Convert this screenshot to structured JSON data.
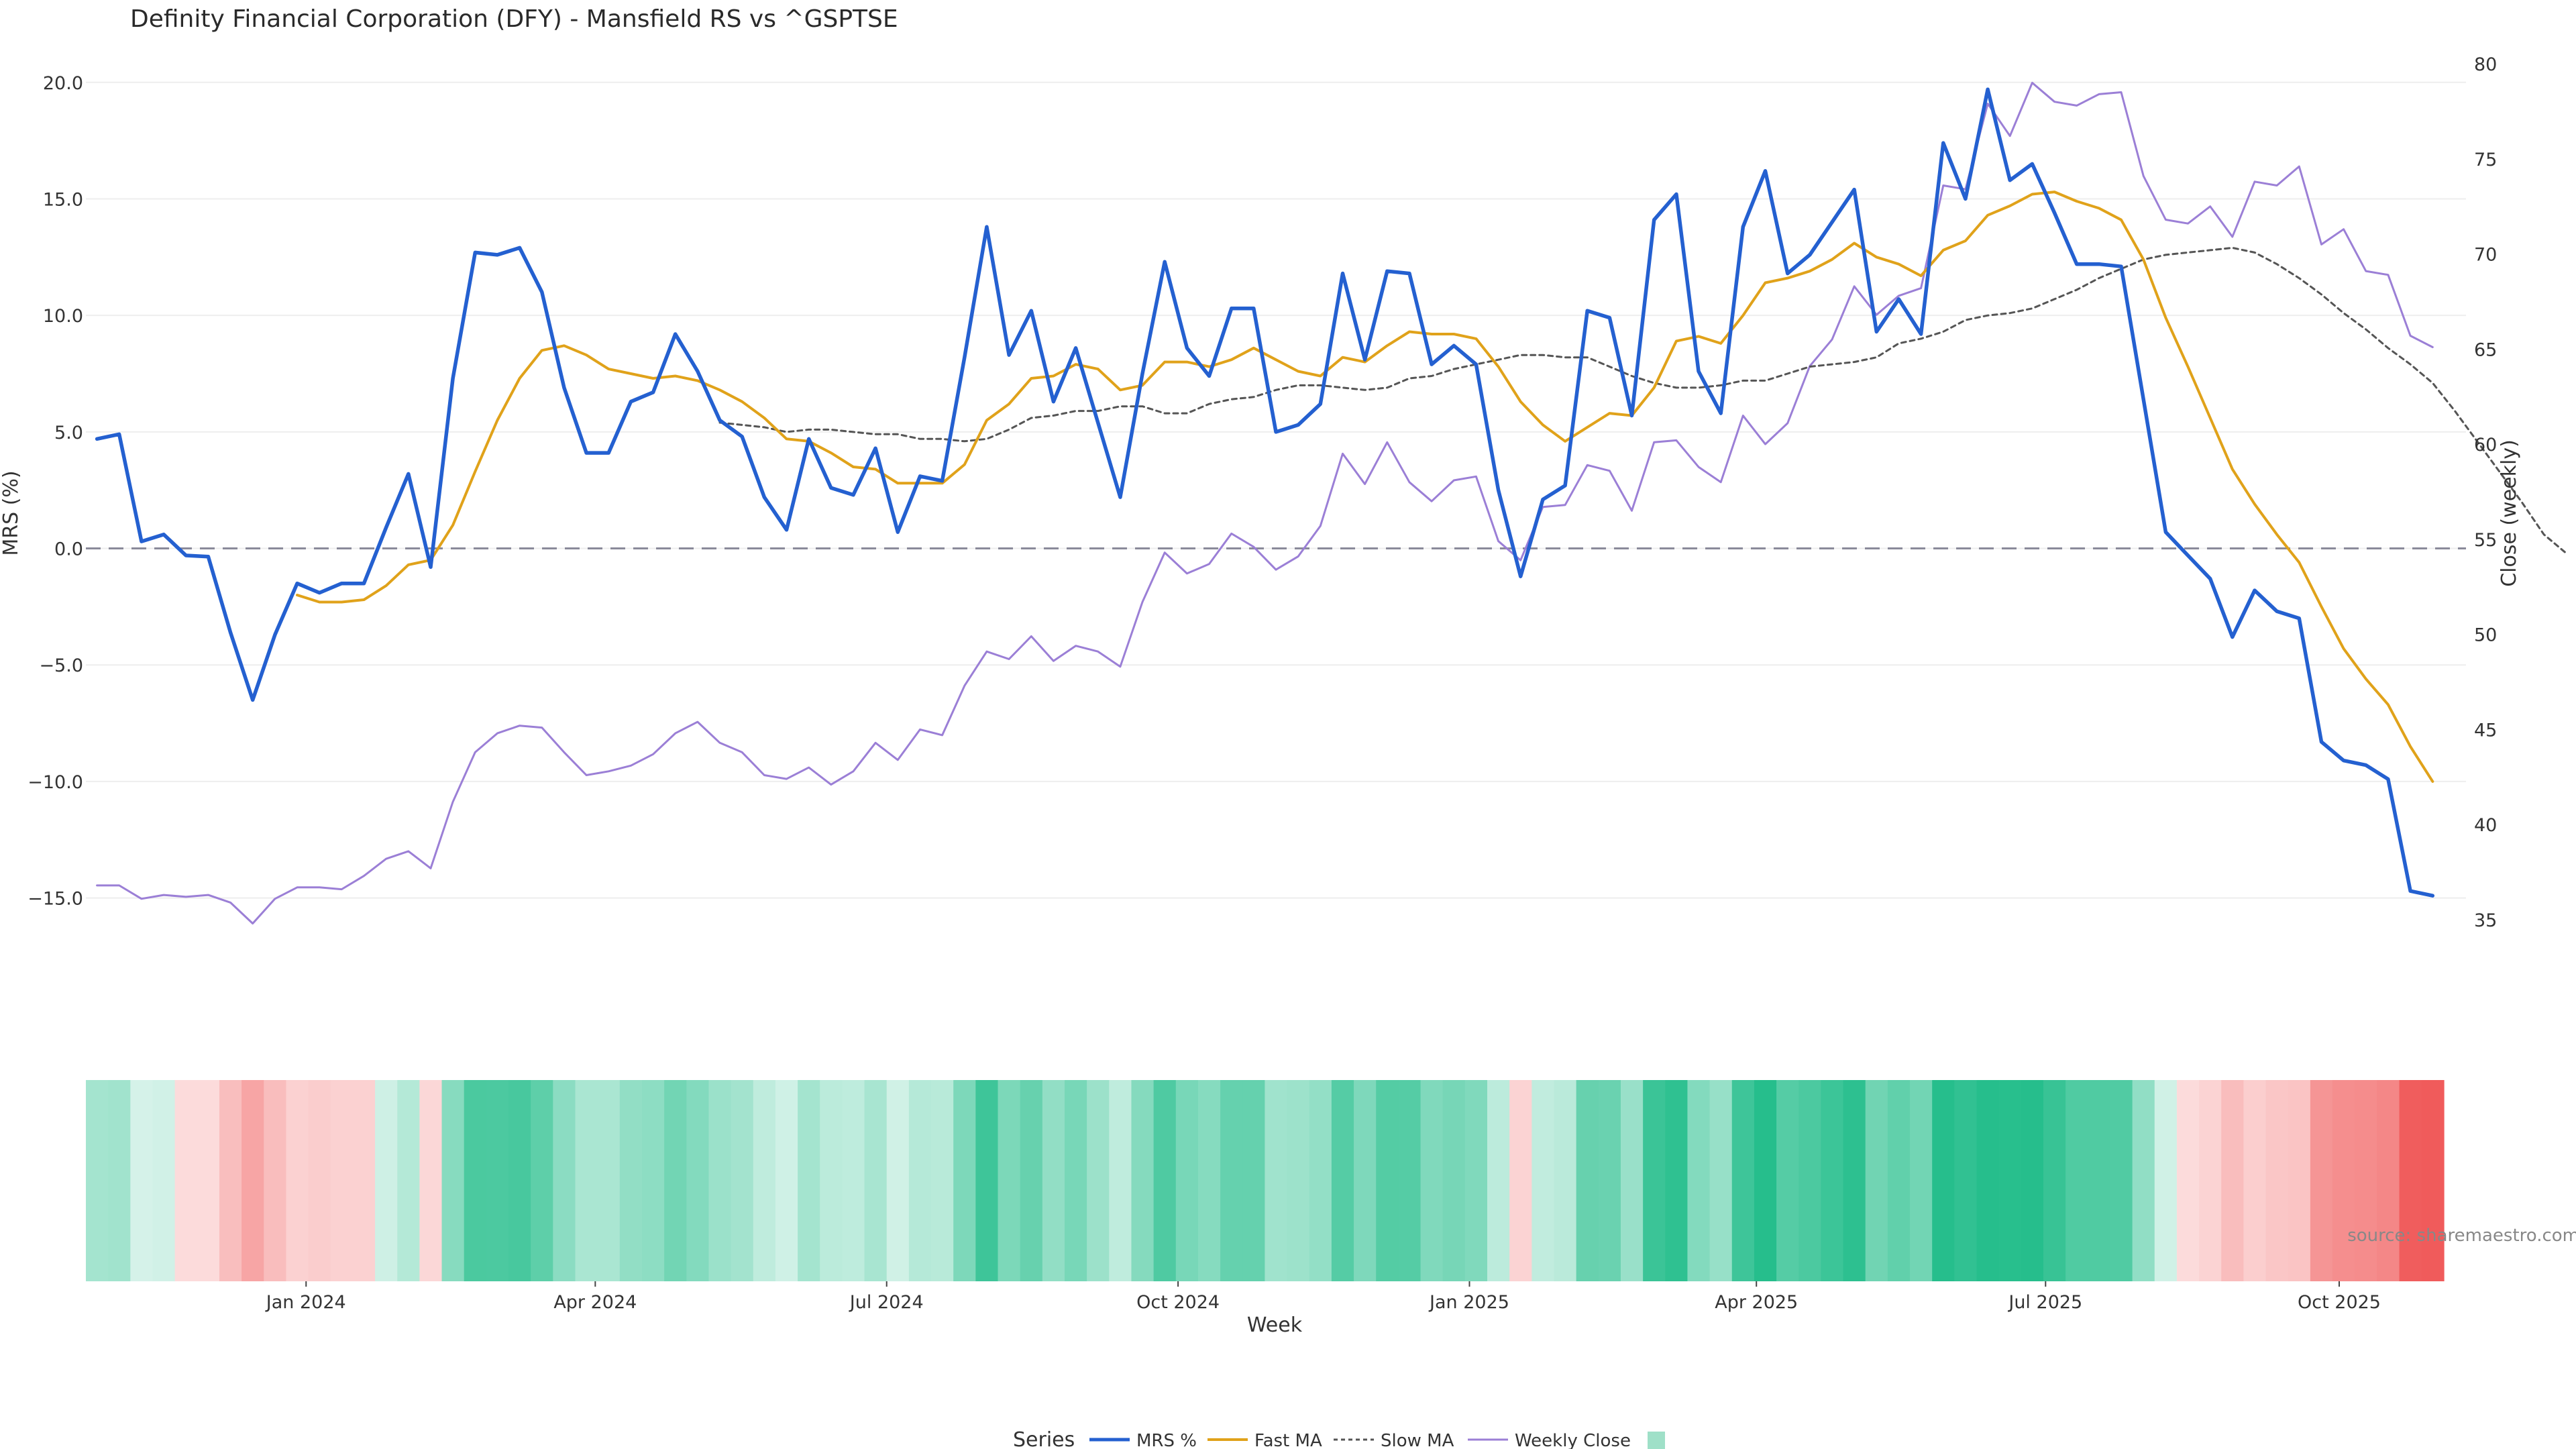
{
  "chart_data": {
    "type": "line",
    "title": "Definity Financial Corporation (DFY) - Mansfield RS vs ^GSPTSE",
    "xlabel": "Week",
    "ylabel_left": "MRS (%)",
    "ylabel_right": "Close (weekly)",
    "y_left_range": [
      -17.4,
      20.8
    ],
    "y_left_ticks": [
      "20.0",
      "15.0",
      "10.0",
      "5.0",
      "0.0",
      "−5.0",
      "−10.0",
      "−15.0"
    ],
    "y_left_tick_values": [
      20,
      15,
      10,
      5,
      0,
      -5,
      -10,
      -15
    ],
    "y_right_range": [
      33.2,
      80.0
    ],
    "y_right_ticks": [
      "80",
      "75",
      "70",
      "65",
      "60",
      "55",
      "50",
      "45",
      "40",
      "35"
    ],
    "y_right_tick_values": [
      80,
      75,
      70,
      65,
      60,
      55,
      50,
      45,
      40,
      35
    ],
    "x_ticks": [
      "Jan 2024",
      "Apr 2024",
      "Jul 2024",
      "Oct 2024",
      "Jan 2025",
      "Apr 2025",
      "Jul 2025",
      "Oct 2025"
    ],
    "x_tick_weeks": [
      9.9,
      22.9,
      36.0,
      49.1,
      62.2,
      75.1,
      88.1,
      101.3
    ],
    "week_count": 107,
    "zero_line": 0,
    "legend_title": "Series",
    "legend_position": "bottom",
    "source": "source: sharemaestro.com",
    "colors": {
      "mrs": "#2460d0",
      "fast_ma": "#e0a21a",
      "slow_ma": "#555555",
      "weekly_close": "#9b7fd6",
      "zero_line": "#8a8a9a",
      "grid": "#eeeeee",
      "heat_positive": "#26be8c",
      "heat_negative": "#f05a5a",
      "legend_heat_swatch": "#9fe0c8"
    },
    "series": [
      {
        "name": "MRS %",
        "key": "mrs",
        "values": [
          4.7,
          4.9,
          0.3,
          0.6,
          -0.3,
          -0.35,
          -3.6,
          -6.5,
          -3.7,
          -1.5,
          -1.9,
          -1.5,
          -1.5,
          0.9,
          3.2,
          -0.8,
          7.3,
          12.7,
          12.6,
          12.9,
          11.0,
          6.9,
          4.1,
          4.1,
          6.3,
          6.7,
          9.2,
          7.6,
          5.5,
          4.8,
          2.2,
          0.8,
          4.7,
          2.6,
          2.3,
          4.3,
          0.7,
          3.1,
          2.9,
          8.2,
          13.8,
          8.3,
          10.2,
          6.3,
          8.6,
          5.4,
          2.2,
          7.5,
          12.3,
          8.6,
          7.4,
          10.3,
          10.3,
          5.0,
          5.3,
          6.2,
          11.8,
          8.1,
          11.9,
          11.8,
          7.9,
          8.7,
          7.9,
          2.5,
          -1.2,
          2.1,
          2.7,
          10.2,
          9.9,
          5.7,
          14.1,
          15.2,
          7.6,
          5.8,
          13.8,
          16.2,
          11.8,
          12.6,
          14.0,
          15.4,
          9.3,
          10.7,
          9.2,
          17.4,
          15.0,
          19.7,
          15.8,
          16.5,
          14.4,
          12.2,
          12.2,
          12.1,
          6.4,
          0.7,
          -0.3,
          -1.3,
          -3.8,
          -1.8,
          -2.7,
          -3.0,
          -8.3,
          -9.1,
          -9.3,
          -9.9,
          -14.7,
          -14.9
        ]
      },
      {
        "name": "Fast MA",
        "key": "fast_ma",
        "start_week": 9,
        "values": [
          -2.0,
          -2.3,
          -2.3,
          -2.2,
          -1.6,
          -0.7,
          -0.5,
          1.0,
          3.3,
          5.5,
          7.3,
          8.5,
          8.7,
          8.3,
          7.7,
          7.5,
          7.3,
          7.4,
          7.2,
          6.8,
          6.3,
          5.6,
          4.7,
          4.6,
          4.1,
          3.5,
          3.4,
          2.8,
          2.8,
          2.8,
          3.6,
          5.5,
          6.2,
          7.3,
          7.4,
          7.9,
          7.7,
          6.8,
          7.0,
          8.0,
          8.0,
          7.8,
          8.1,
          8.6,
          8.1,
          7.6,
          7.4,
          8.2,
          8.0,
          8.7,
          9.3,
          9.2,
          9.2,
          9.0,
          7.8,
          6.3,
          5.3,
          4.6,
          5.2,
          5.8,
          5.7,
          6.9,
          8.9,
          9.1,
          8.8,
          10.0,
          11.4,
          11.6,
          11.9,
          12.4,
          13.1,
          12.5,
          12.2,
          11.7,
          12.8,
          13.2,
          14.3,
          14.7,
          15.2,
          15.3,
          14.9,
          14.6,
          14.1,
          12.4,
          9.9,
          7.8,
          5.6,
          3.4,
          1.9,
          0.6,
          -0.6,
          -2.5,
          -4.3,
          -5.6,
          -6.7,
          -8.5,
          -10.0
        ]
      },
      {
        "name": "Slow MA",
        "key": "slow_ma",
        "start_week": 28,
        "values": [
          5.4,
          5.3,
          5.2,
          5.0,
          5.1,
          5.1,
          5.0,
          4.9,
          4.9,
          4.7,
          4.7,
          4.6,
          4.7,
          5.1,
          5.6,
          5.7,
          5.9,
          5.9,
          6.1,
          6.1,
          5.8,
          5.8,
          6.2,
          6.4,
          6.5,
          6.8,
          7.0,
          7.0,
          6.9,
          6.8,
          6.9,
          7.3,
          7.4,
          7.7,
          7.9,
          8.1,
          8.3,
          8.3,
          8.2,
          8.2,
          7.8,
          7.4,
          7.1,
          6.9,
          6.9,
          7.0,
          7.2,
          7.2,
          7.5,
          7.8,
          7.9,
          8.0,
          8.2,
          8.8,
          9.0,
          9.3,
          9.8,
          10.0,
          10.1,
          10.3,
          10.7,
          11.1,
          11.6,
          12.0,
          12.4,
          12.6,
          12.7,
          12.8,
          12.9,
          12.7,
          12.2,
          11.6,
          10.9,
          10.1,
          9.4,
          8.6,
          7.9,
          7.1,
          5.9,
          4.6,
          3.3,
          2.0,
          0.6,
          -0.2
        ]
      },
      {
        "name": "Weekly Close",
        "key": "weekly_close",
        "axis": "right",
        "values": [
          36.8,
          36.8,
          36.1,
          36.3,
          36.2,
          36.3,
          35.9,
          34.8,
          36.1,
          36.7,
          36.7,
          36.6,
          37.3,
          38.2,
          38.6,
          37.7,
          41.2,
          43.8,
          44.8,
          45.2,
          45.1,
          43.8,
          42.6,
          42.8,
          43.1,
          43.7,
          44.8,
          45.4,
          44.3,
          43.8,
          42.6,
          42.4,
          43.0,
          42.1,
          42.8,
          44.3,
          43.4,
          45.0,
          44.7,
          47.3,
          49.1,
          48.7,
          49.9,
          48.6,
          49.4,
          49.1,
          48.3,
          51.7,
          54.3,
          53.2,
          53.7,
          55.3,
          54.6,
          53.4,
          54.1,
          55.7,
          59.5,
          57.9,
          60.1,
          58.0,
          57.0,
          58.1,
          58.3,
          54.9,
          53.9,
          56.7,
          56.8,
          58.9,
          58.6,
          56.5,
          60.1,
          60.2,
          58.8,
          58.0,
          61.5,
          60.0,
          61.1,
          64.1,
          65.5,
          68.3,
          66.8,
          67.8,
          68.2,
          73.6,
          73.4,
          77.9,
          76.2,
          79.0,
          78.0,
          77.8,
          78.4,
          78.5,
          74.1,
          71.8,
          71.6,
          72.5,
          70.9,
          73.8,
          73.6,
          74.6,
          70.5,
          71.3,
          69.1,
          68.9,
          65.7,
          65.1
        ]
      },
      {
        "name": "",
        "key": "mrs_heatmap",
        "values": [
          4.7,
          4.9,
          0.3,
          0.6,
          -0.3,
          -0.35,
          -3.6,
          -6.5,
          -3.7,
          -1.5,
          -1.9,
          -1.5,
          -1.5,
          0.9,
          3.2,
          -0.8,
          7.3,
          12.7,
          12.6,
          12.9,
          11.0,
          6.9,
          4.1,
          4.1,
          6.3,
          6.7,
          9.2,
          7.6,
          5.5,
          4.8,
          2.2,
          0.8,
          4.7,
          2.6,
          2.3,
          4.3,
          0.7,
          3.1,
          2.9,
          8.2,
          13.8,
          8.3,
          10.2,
          6.3,
          8.6,
          5.4,
          2.2,
          7.5,
          12.3,
          8.6,
          7.4,
          10.3,
          10.3,
          5.0,
          5.3,
          6.2,
          11.8,
          8.1,
          11.9,
          11.8,
          7.9,
          8.7,
          7.9,
          2.5,
          -1.2,
          2.1,
          2.7,
          10.2,
          9.9,
          5.7,
          14.1,
          15.2,
          7.6,
          5.8,
          13.8,
          16.2,
          11.8,
          12.6,
          14.0,
          15.4,
          9.3,
          10.7,
          9.2,
          17.4,
          15.0,
          19.7,
          15.8,
          16.5,
          14.4,
          12.2,
          12.2,
          12.1,
          6.4,
          0.7,
          -0.3,
          -1.3,
          -3.8,
          -1.8,
          -2.7,
          -3.0,
          -8.3,
          -9.1,
          -9.3,
          -9.9,
          -14.7,
          -14.9
        ]
      }
    ]
  }
}
